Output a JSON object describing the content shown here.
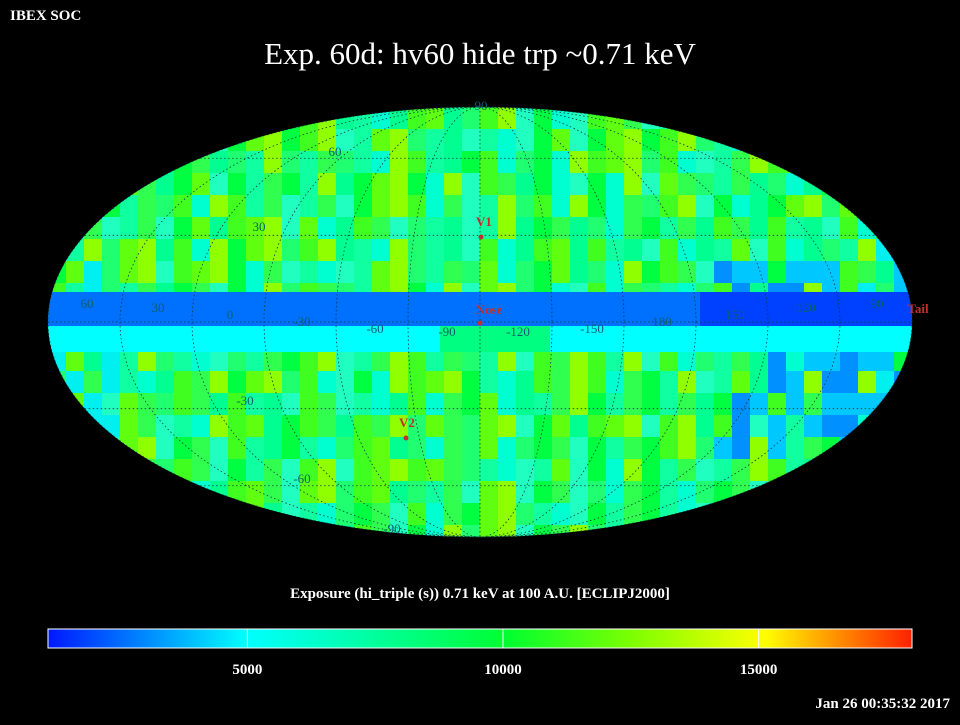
{
  "header": {
    "source": "IBEX SOC",
    "timestamp": "Jan 26 00:35:32 2017"
  },
  "title": "Exp.   60d: hv60 hide trp ~0.71 keV",
  "map": {
    "latitude_labels": [
      "90",
      "60",
      "30",
      "-30",
      "-60",
      "-90"
    ],
    "longitude_labels": [
      "60",
      "30",
      "0",
      "-30",
      "-60",
      "-90",
      "-120",
      "-150",
      "180",
      "150",
      "120",
      "90"
    ],
    "markers": [
      "V1",
      "Nose",
      "V2",
      "Tail"
    ]
  },
  "colorbar": {
    "label": "Exposure (hi_triple (s))  0.71 keV at 100 A.U. [ECLIPJ2000]",
    "range": [
      1100,
      18000
    ],
    "ticks": [
      5000,
      10000,
      15000
    ]
  }
}
